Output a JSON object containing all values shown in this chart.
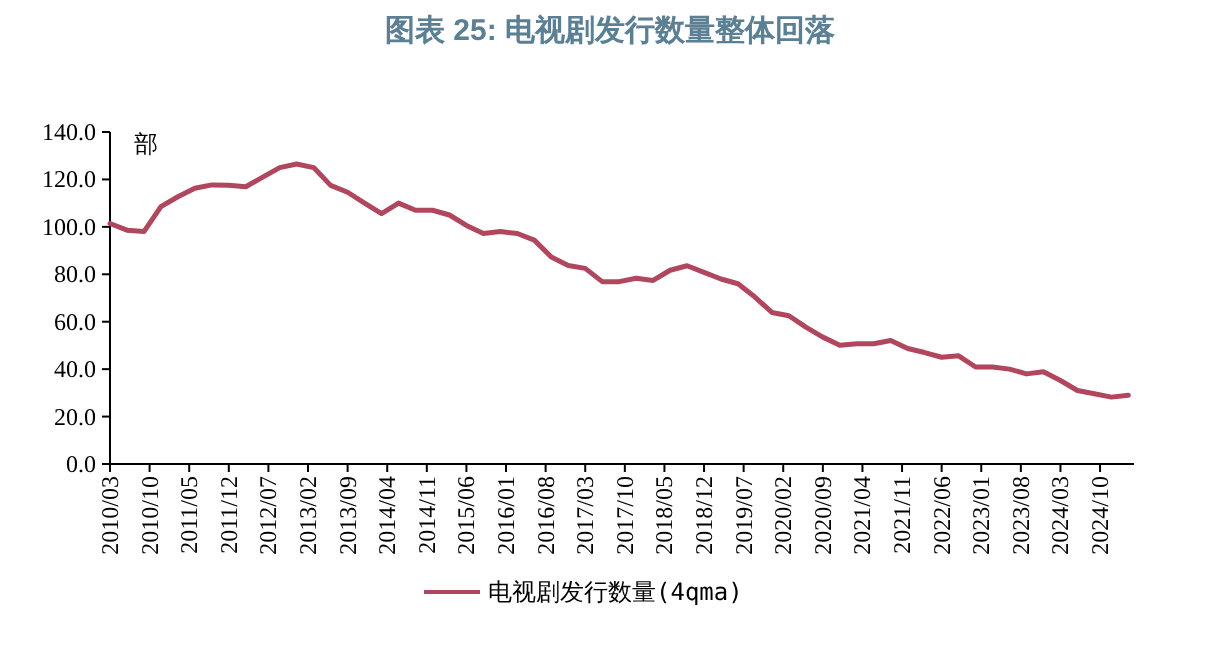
{
  "chart_data": {
    "type": "line",
    "title": "图表 25: 电视剧发行数量整体回落",
    "ylabel": "部",
    "x": [
      "2010-03",
      "2010-06",
      "2010-09",
      "2010-12",
      "2011-03",
      "2011-06",
      "2011-09",
      "2011-12",
      "2012-03",
      "2012-06",
      "2012-09",
      "2012-12",
      "2013-03",
      "2013-06",
      "2013-09",
      "2013-12",
      "2014-03",
      "2014-06",
      "2014-09",
      "2014-12",
      "2015-03",
      "2015-06",
      "2015-09",
      "2015-12",
      "2016-03",
      "2016-06",
      "2016-09",
      "2016-12",
      "2017-03",
      "2017-06",
      "2017-09",
      "2017-12",
      "2018-03",
      "2018-06",
      "2018-09",
      "2018-12",
      "2019-03",
      "2019-06",
      "2019-09",
      "2019-12",
      "2020-03",
      "2020-06",
      "2020-09",
      "2020-12",
      "2021-03",
      "2021-06",
      "2021-09",
      "2021-12",
      "2022-03",
      "2022-06",
      "2022-09",
      "2022-12",
      "2023-03",
      "2023-06",
      "2023-09",
      "2023-12",
      "2024-03",
      "2024-06",
      "2024-09",
      "2024-12",
      "2025-03"
    ],
    "series": [
      {
        "name": "电视剧发行数量(4qma)",
        "color": "#b0475e",
        "values": [
          101.4,
          98.6,
          98.0,
          108.5,
          112.7,
          116.3,
          117.7,
          117.5,
          116.9,
          121.0,
          125.0,
          126.5,
          125.0,
          117.5,
          114.6,
          110.0,
          105.6,
          110.0,
          107.0,
          107.0,
          105.0,
          100.6,
          97.2,
          98.0,
          97.2,
          94.4,
          87.3,
          83.7,
          82.5,
          76.9,
          76.9,
          78.3,
          77.4,
          81.7,
          83.6,
          80.8,
          78.0,
          76.0,
          70.4,
          63.9,
          62.5,
          57.7,
          53.5,
          50.1,
          50.7,
          50.7,
          52.1,
          48.7,
          47.0,
          45.0,
          45.6,
          40.9,
          40.9,
          40.0,
          38.0,
          38.9,
          35.2,
          31.0,
          29.6,
          28.2,
          29.0
        ]
      }
    ],
    "xlim": [
      "2010-03",
      "2025-04"
    ],
    "xticks": [
      {
        "value": "2010-03",
        "label": "2010/03"
      },
      {
        "value": "2010-10",
        "label": "2010/10"
      },
      {
        "value": "2011-05",
        "label": "2011/05"
      },
      {
        "value": "2011-12",
        "label": "2011/12"
      },
      {
        "value": "2012-07",
        "label": "2012/07"
      },
      {
        "value": "2013-02",
        "label": "2013/02"
      },
      {
        "value": "2013-09",
        "label": "2013/09"
      },
      {
        "value": "2014-04",
        "label": "2014/04"
      },
      {
        "value": "2014-11",
        "label": "2014/11"
      },
      {
        "value": "2015-06",
        "label": "2015/06"
      },
      {
        "value": "2016-01",
        "label": "2016/01"
      },
      {
        "value": "2016-08",
        "label": "2016/08"
      },
      {
        "value": "2017-03",
        "label": "2017/03"
      },
      {
        "value": "2017-10",
        "label": "2017/10"
      },
      {
        "value": "2018-05",
        "label": "2018/05"
      },
      {
        "value": "2018-12",
        "label": "2018/12"
      },
      {
        "value": "2019-07",
        "label": "2019/07"
      },
      {
        "value": "2020-02",
        "label": "2020/02"
      },
      {
        "value": "2020-09",
        "label": "2020/09"
      },
      {
        "value": "2021-04",
        "label": "2021/04"
      },
      {
        "value": "2021-11",
        "label": "2021/11"
      },
      {
        "value": "2022-06",
        "label": "2022/06"
      },
      {
        "value": "2023-01",
        "label": "2023/01"
      },
      {
        "value": "2023-08",
        "label": "2023/08"
      },
      {
        "value": "2024-03",
        "label": "2024/03"
      },
      {
        "value": "2024-10",
        "label": "2024/10"
      }
    ],
    "ylim": [
      0,
      140
    ],
    "yticks": [
      {
        "value": 0,
        "label": "0.0"
      },
      {
        "value": 20,
        "label": "20.0"
      },
      {
        "value": 40,
        "label": "40.0"
      },
      {
        "value": 60,
        "label": "60.0"
      },
      {
        "value": 80,
        "label": "80.0"
      },
      {
        "value": 100,
        "label": "100.0"
      },
      {
        "value": 120,
        "label": "120.0"
      },
      {
        "value": 140,
        "label": "140.0"
      }
    ],
    "legend": "bottom",
    "marker": "none",
    "line_style": "solid",
    "grid": false
  }
}
